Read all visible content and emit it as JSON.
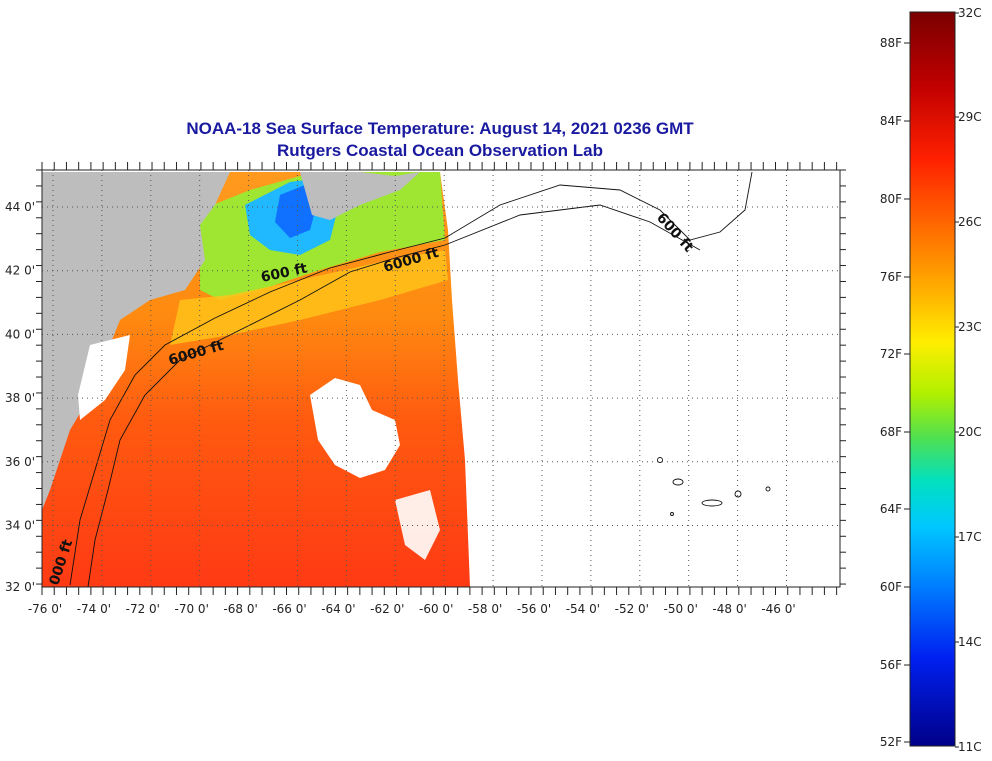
{
  "title": {
    "line1": "NOAA-18 Sea Surface Temperature:  August 14, 2021 0236 GMT",
    "line2": "Rutgers Coastal Ocean Observation Lab"
  },
  "axes": {
    "lon_ticks": [
      "-76 0'",
      "-74 0'",
      "-72 0'",
      "-70 0'",
      "-68 0'",
      "-66 0'",
      "-64 0'",
      "-62 0'",
      "-60 0'",
      "-58 0'",
      "-56 0'",
      "-54 0'",
      "-52 0'",
      "-50 0'",
      "-48 0'",
      "-46 0'"
    ],
    "lat_ticks": [
      "44 0'",
      "42 0'",
      "40 0'",
      "38 0'",
      "36 0'",
      "34 0'",
      "32 0'"
    ]
  },
  "contours": {
    "label_600_north": "600 ft",
    "label_6000_north": "6000 ft",
    "label_6000_mid": "6000 ft",
    "label_600_east": "600 ft",
    "label_south": "000 ft"
  },
  "colorbar": {
    "fahrenheit": [
      "88F",
      "84F",
      "80F",
      "76F",
      "72F",
      "68F",
      "64F",
      "60F",
      "56F",
      "52F"
    ],
    "celsius": [
      "32C",
      "29C",
      "26C",
      "23C",
      "20C",
      "17C",
      "14C",
      "11C"
    ],
    "colors": [
      "#7a0000",
      "#d40000",
      "#ff3000",
      "#ff7a00",
      "#ffb000",
      "#ffe600",
      "#c8f000",
      "#60e040",
      "#00e0c0",
      "#00b0ff",
      "#0060ff",
      "#0010e0",
      "#000090"
    ]
  }
}
